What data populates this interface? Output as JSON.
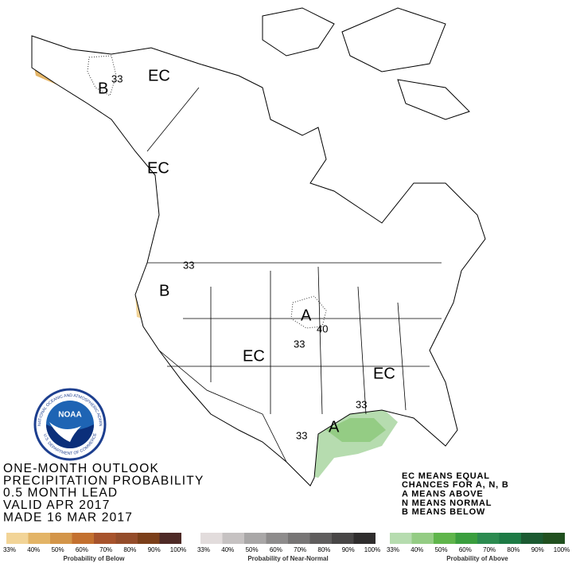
{
  "title_lines": [
    "ONE-MONTH OUTLOOK",
    "PRECIPITATION PROBABILITY",
    "0.5 MONTH LEAD",
    "VALID APR 2017",
    "MADE 16 MAR 2017"
  ],
  "key_lines": [
    "EC MEANS EQUAL",
    "CHANCES FOR A, N, B",
    "A MEANS ABOVE",
    "N MEANS NORMAL",
    "B MEANS BELOW"
  ],
  "map_labels": [
    "EC",
    "B",
    "33",
    "EC",
    "33",
    "B",
    "EC",
    "A",
    "40",
    "33",
    "EC",
    "33",
    "A",
    "33"
  ],
  "logo": {
    "name": "NOAA",
    "agency": "NATIONAL OCEANIC AND ATMOSPHERIC ADMINISTRATION",
    "department": "U.S. DEPARTMENT OF COMMERCE"
  },
  "scales": [
    {
      "caption": "Probability of Below",
      "ticks": [
        "33%",
        "40%",
        "50%",
        "60%",
        "70%",
        "80%",
        "90%",
        "100%"
      ],
      "colors": [
        "#f2d497",
        "#e3b466",
        "#d39549",
        "#c3702f",
        "#a7532c",
        "#944c2a",
        "#7b3f1a",
        "#4e2a26"
      ]
    },
    {
      "caption": "Probability of Near-Normal",
      "ticks": [
        "33%",
        "40%",
        "50%",
        "60%",
        "70%",
        "80%",
        "90%",
        "100%"
      ],
      "colors": [
        "#e2dcdc",
        "#c6c2c2",
        "#a9a7a7",
        "#8e8c8c",
        "#777575",
        "#5f5d5d",
        "#484646",
        "#2f2d2d"
      ]
    },
    {
      "caption": "Probability of Above",
      "ticks": [
        "33%",
        "40%",
        "50%",
        "60%",
        "70%",
        "80%",
        "90%",
        "100%"
      ],
      "colors": [
        "#b6dcaf",
        "#94cc84",
        "#5fb54b",
        "#3a9e3e",
        "#2c8b50",
        "#1d7a45",
        "#1b5a31",
        "#21501f"
      ]
    }
  ]
}
